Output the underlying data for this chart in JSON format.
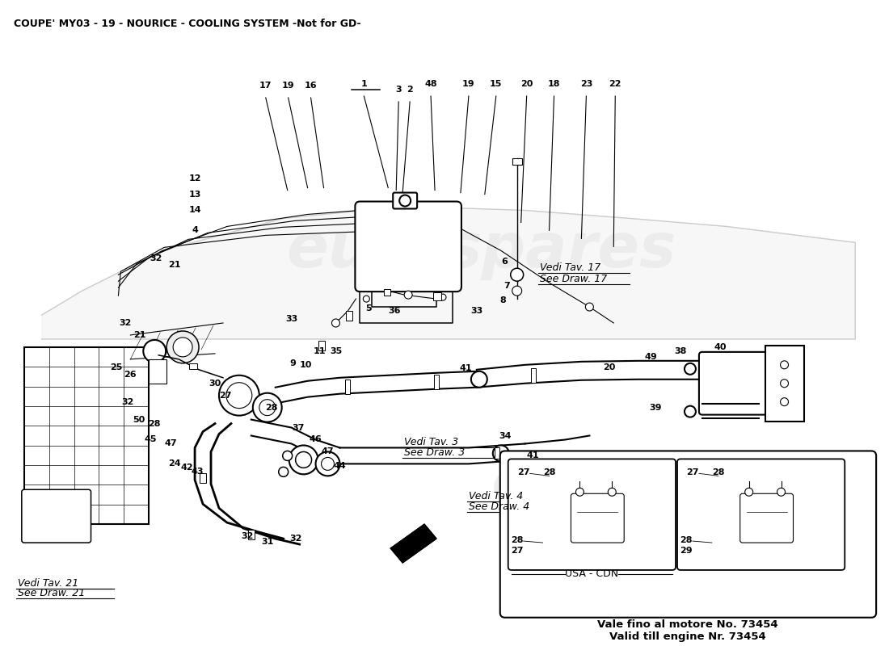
{
  "title": "COUPE' MY03 - 19 - NOURICE - COOLING SYSTEM -Not for GD-",
  "title_fontsize": 9,
  "bg_color": "#ffffff",
  "line_color": "#000000",
  "bottom_note_line1": "Vale fino al motore No. 73454",
  "bottom_note_line2": "Valid till engine Nr. 73454",
  "usa_cdn_label": "USA - CDN"
}
